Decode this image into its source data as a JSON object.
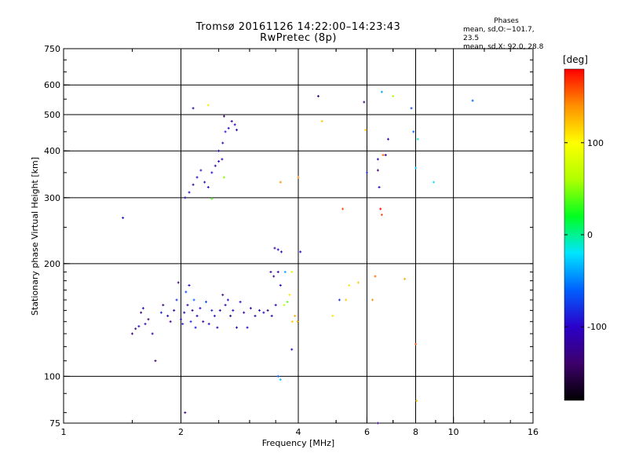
{
  "title": "Tromsø 20161126 14:22:00–14:23:43",
  "subtitle": "RwPretec (8p)",
  "stats": {
    "heading": "Phases",
    "line1": "mean, sd,O:−101.7, 23.5",
    "line2": "mean, sd,X:  92.0, 28.8"
  },
  "colorbar": {
    "unit": "[deg]",
    "ticks": [
      100,
      0,
      -100
    ],
    "range": [
      -180,
      180
    ],
    "stops": [
      "#000000",
      "#3d006b",
      "#2b00c8",
      "#0060ff",
      "#00e5ff",
      "#00ff20",
      "#b0ff00",
      "#ffff00",
      "#ff9000",
      "#ff0000"
    ]
  },
  "chart_data": {
    "type": "scatter",
    "title": "Tromsø 20161126 14:22:00–14:23:43",
    "subtitle": "RwPretec (8p)",
    "xlabel": "Frequency [MHz]",
    "ylabel": "Stationary phase Virtual Height [km]",
    "x_scale": "log",
    "y_scale": "log",
    "xlim": [
      1,
      16
    ],
    "ylim": [
      75,
      750
    ],
    "x_ticks": [
      1,
      2,
      4,
      6,
      8,
      10,
      16
    ],
    "y_ticks": [
      75,
      100,
      200,
      300,
      400,
      500,
      600,
      750
    ],
    "x_grid": [
      2,
      4,
      6,
      8,
      10
    ],
    "y_grid": [
      100,
      200,
      300,
      400,
      500,
      600
    ],
    "grid": true,
    "color_key": "phase [deg]",
    "points": [
      [
        1.42,
        265,
        -90
      ],
      [
        1.5,
        130,
        -130
      ],
      [
        1.53,
        134,
        -125
      ],
      [
        1.56,
        136,
        -110
      ],
      [
        1.58,
        148,
        -140
      ],
      [
        1.6,
        152,
        -100
      ],
      [
        1.62,
        138,
        -120
      ],
      [
        1.65,
        142,
        -135
      ],
      [
        1.69,
        130,
        -110
      ],
      [
        1.72,
        110,
        -140
      ],
      [
        1.78,
        148,
        -90
      ],
      [
        1.8,
        155,
        -130
      ],
      [
        1.85,
        145,
        -100
      ],
      [
        1.88,
        140,
        -120
      ],
      [
        1.92,
        150,
        -110
      ],
      [
        1.95,
        160,
        -80
      ],
      [
        1.97,
        178,
        -130
      ],
      [
        2.0,
        142,
        -100
      ],
      [
        2.02,
        138,
        -90
      ],
      [
        2.04,
        148,
        -110
      ],
      [
        2.06,
        168,
        -70
      ],
      [
        2.08,
        155,
        -120
      ],
      [
        2.1,
        175,
        -100
      ],
      [
        2.12,
        140,
        -80
      ],
      [
        2.14,
        150,
        -130
      ],
      [
        2.16,
        160,
        -60
      ],
      [
        2.18,
        135,
        -90
      ],
      [
        2.2,
        145,
        -110
      ],
      [
        2.24,
        152,
        -100
      ],
      [
        2.28,
        140,
        -120
      ],
      [
        2.32,
        158,
        -70
      ],
      [
        2.36,
        138,
        -100
      ],
      [
        2.4,
        150,
        -85
      ],
      [
        2.44,
        145,
        -90
      ],
      [
        2.48,
        135,
        -110
      ],
      [
        2.52,
        150,
        -100
      ],
      [
        2.56,
        165,
        -130
      ],
      [
        2.6,
        155,
        -110
      ],
      [
        2.64,
        160,
        -95
      ],
      [
        2.68,
        145,
        -120
      ],
      [
        2.72,
        150,
        -105
      ],
      [
        2.78,
        135,
        -110
      ],
      [
        2.84,
        158,
        -100
      ],
      [
        2.9,
        148,
        -115
      ],
      [
        2.96,
        135,
        -100
      ],
      [
        3.02,
        152,
        -120
      ],
      [
        3.1,
        145,
        -110
      ],
      [
        3.18,
        150,
        -100
      ],
      [
        3.26,
        148,
        -95
      ],
      [
        3.34,
        150,
        -130
      ],
      [
        3.42,
        145,
        -100
      ],
      [
        3.5,
        155,
        -110
      ],
      [
        3.4,
        190,
        -120
      ],
      [
        3.46,
        185,
        -130
      ],
      [
        3.55,
        190,
        -110
      ],
      [
        3.6,
        175,
        -100
      ],
      [
        3.48,
        220,
        -115
      ],
      [
        3.55,
        218,
        -100
      ],
      [
        3.62,
        215,
        -110
      ],
      [
        3.68,
        155,
        70
      ],
      [
        3.75,
        158,
        40
      ],
      [
        3.8,
        165,
        110
      ],
      [
        3.86,
        140,
        120
      ],
      [
        3.92,
        145,
        130
      ],
      [
        3.98,
        140,
        120
      ],
      [
        3.7,
        190,
        -40
      ],
      [
        3.85,
        190,
        80
      ],
      [
        4.05,
        215,
        -100
      ],
      [
        3.85,
        118,
        -110
      ],
      [
        3.55,
        100,
        -60
      ],
      [
        3.6,
        98,
        -30
      ],
      [
        2.05,
        300,
        -110
      ],
      [
        2.1,
        310,
        -100
      ],
      [
        2.15,
        325,
        -120
      ],
      [
        2.2,
        340,
        -100
      ],
      [
        2.25,
        355,
        -90
      ],
      [
        2.3,
        330,
        -110
      ],
      [
        2.35,
        320,
        -100
      ],
      [
        2.4,
        350,
        -95
      ],
      [
        2.45,
        365,
        -110
      ],
      [
        2.5,
        375,
        -100
      ],
      [
        2.55,
        380,
        -110
      ],
      [
        2.58,
        340,
        50
      ],
      [
        2.5,
        400,
        -100
      ],
      [
        2.56,
        420,
        -110
      ],
      [
        2.6,
        450,
        -90
      ],
      [
        2.65,
        460,
        -100
      ],
      [
        2.7,
        480,
        -120
      ],
      [
        2.75,
        470,
        -100
      ],
      [
        2.78,
        455,
        -95
      ],
      [
        2.15,
        520,
        -110
      ],
      [
        2.35,
        530,
        110
      ],
      [
        2.58,
        495,
        -140
      ],
      [
        2.4,
        298,
        40
      ],
      [
        2.05,
        80,
        -130
      ],
      [
        3.6,
        330,
        140
      ],
      [
        4.0,
        340,
        140
      ],
      [
        4.5,
        560,
        -130
      ],
      [
        4.6,
        480,
        120
      ],
      [
        5.2,
        280,
        160
      ],
      [
        5.1,
        160,
        -80
      ],
      [
        5.4,
        175,
        110
      ],
      [
        5.7,
        178,
        120
      ],
      [
        5.9,
        540,
        -130
      ],
      [
        5.95,
        455,
        120
      ],
      [
        6.0,
        350,
        -80
      ],
      [
        6.2,
        160,
        140
      ],
      [
        6.3,
        185,
        150
      ],
      [
        6.4,
        380,
        -110
      ],
      [
        6.4,
        355,
        -140
      ],
      [
        6.45,
        320,
        -100
      ],
      [
        6.5,
        280,
        180
      ],
      [
        6.55,
        270,
        160
      ],
      [
        6.55,
        575,
        -40
      ],
      [
        6.6,
        390,
        150
      ],
      [
        6.7,
        390,
        -130
      ],
      [
        6.8,
        430,
        -110
      ],
      [
        7.0,
        560,
        60
      ],
      [
        7.5,
        182,
        130
      ],
      [
        7.8,
        520,
        -70
      ],
      [
        7.9,
        450,
        -60
      ],
      [
        8.0,
        360,
        -30
      ],
      [
        8.1,
        430,
        -10
      ],
      [
        8.0,
        122,
        160
      ],
      [
        8.05,
        86,
        120
      ],
      [
        8.9,
        330,
        -20
      ],
      [
        11.2,
        545,
        -60
      ],
      [
        6.4,
        75,
        -130
      ],
      [
        5.3,
        160,
        120
      ],
      [
        4.9,
        145,
        110
      ]
    ]
  }
}
